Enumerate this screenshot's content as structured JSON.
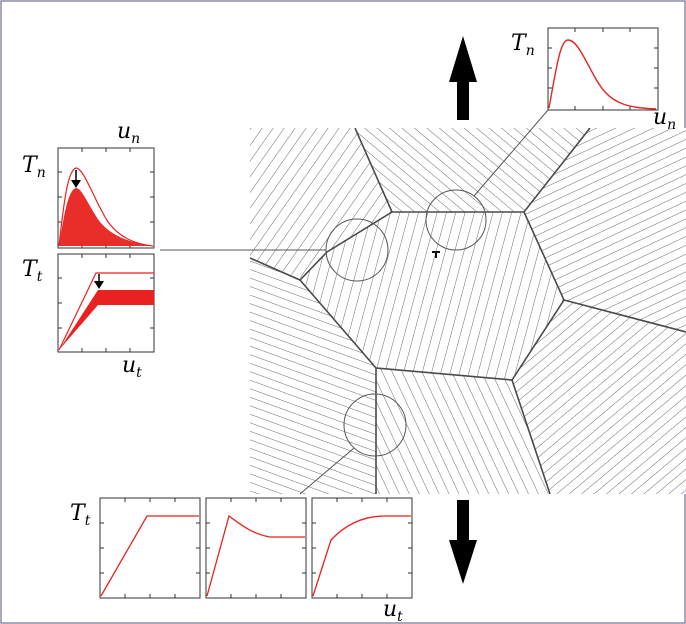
{
  "labels": {
    "tn_main": "T",
    "tn_sub": "n",
    "un_main": "u",
    "un_sub": "n",
    "tt_main": "T",
    "tt_sub": "t",
    "ut_main": "u",
    "ut_sub": "t"
  },
  "colors": {
    "curve": "#e8231f",
    "hatch": "#6a6a6a",
    "boundary": "#4a4a4a",
    "frame": "#8a8aa8"
  },
  "icons": [
    "arrow-up-icon",
    "arrow-down-icon",
    "zoom-circle-icon"
  ]
}
